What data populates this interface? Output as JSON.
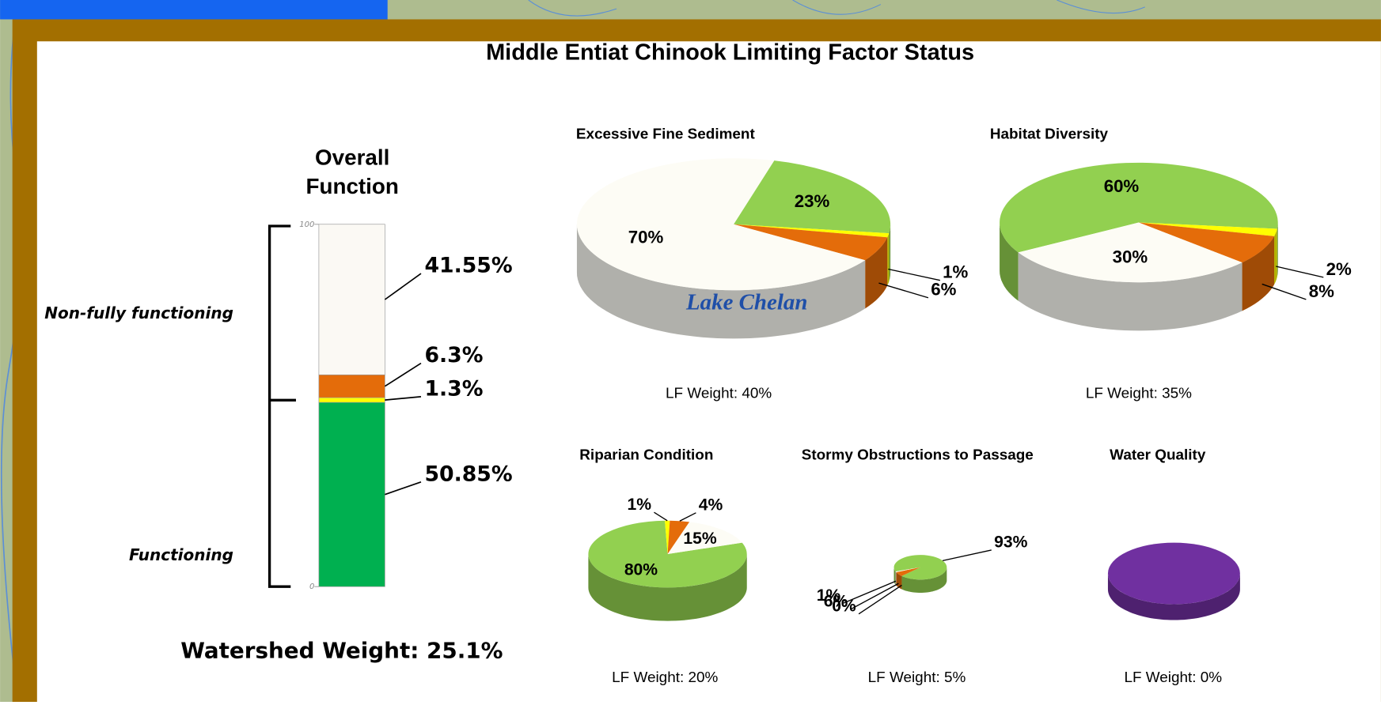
{
  "title": "Middle Entiat Chinook Limiting Factor Status",
  "map_label": "Lake Chelan",
  "chart_data": [
    {
      "type": "stacked_bar",
      "title": "Overall Function",
      "group_labels": [
        "Non-fully functioning",
        "Functioning"
      ],
      "ylim": [
        0,
        100
      ],
      "yticks": [
        0,
        100
      ],
      "series": [
        {
          "color": "#00b050",
          "values": [
            50.85
          ],
          "value_labels": [
            "50.85%"
          ]
        },
        {
          "color": "#ffff00",
          "values": [
            1.3
          ],
          "value_labels": [
            "1.3%"
          ]
        },
        {
          "color": "#e46c0a",
          "values": [
            6.3
          ],
          "value_labels": [
            "6.3%"
          ]
        },
        {
          "color": "#fbf9f4",
          "values": [
            41.55
          ],
          "value_labels": [
            "41.55%"
          ]
        }
      ],
      "note": "Watershed Weight:  25.1%"
    },
    {
      "type": "pie",
      "title": "Excessive Fine Sediment",
      "values": [
        23,
        1,
        6,
        70
      ],
      "value_labels": [
        "23%",
        "1%",
        "6%",
        "70%"
      ],
      "colors": [
        "#92d050",
        "#ffff00",
        "#e46c0a",
        "#fdfcf5"
      ],
      "note": "LF Weight:  40%"
    },
    {
      "type": "pie",
      "title": "Habitat Diversity",
      "values": [
        60,
        2,
        8,
        30
      ],
      "value_labels": [
        "60%",
        "2%",
        "8%",
        "30%"
      ],
      "colors": [
        "#92d050",
        "#ffff00",
        "#e46c0a",
        "#fdfcf5"
      ],
      "note": "LF Weight:  35%"
    },
    {
      "type": "pie",
      "title": "Riparian Condition",
      "values": [
        80,
        1,
        4,
        15
      ],
      "value_labels": [
        "80%",
        "1%",
        "4%",
        "15%"
      ],
      "colors": [
        "#92d050",
        "#ffff00",
        "#e46c0a",
        "#fdfcf5"
      ],
      "note": "LF Weight:  20%"
    },
    {
      "type": "pie",
      "title": "Stormy Obstructions to Passage",
      "values": [
        93,
        0,
        6,
        1
      ],
      "value_labels": [
        "93%",
        "0%",
        "6%",
        "1%"
      ],
      "colors": [
        "#92d050",
        "#ffff00",
        "#e46c0a",
        "#fdfcf5"
      ],
      "note": "LF Weight:  5%"
    },
    {
      "type": "pie",
      "title": "Water Quality",
      "values": [
        100
      ],
      "colors": [
        "#7030a0"
      ],
      "note": "LF Weight:  0%"
    }
  ]
}
